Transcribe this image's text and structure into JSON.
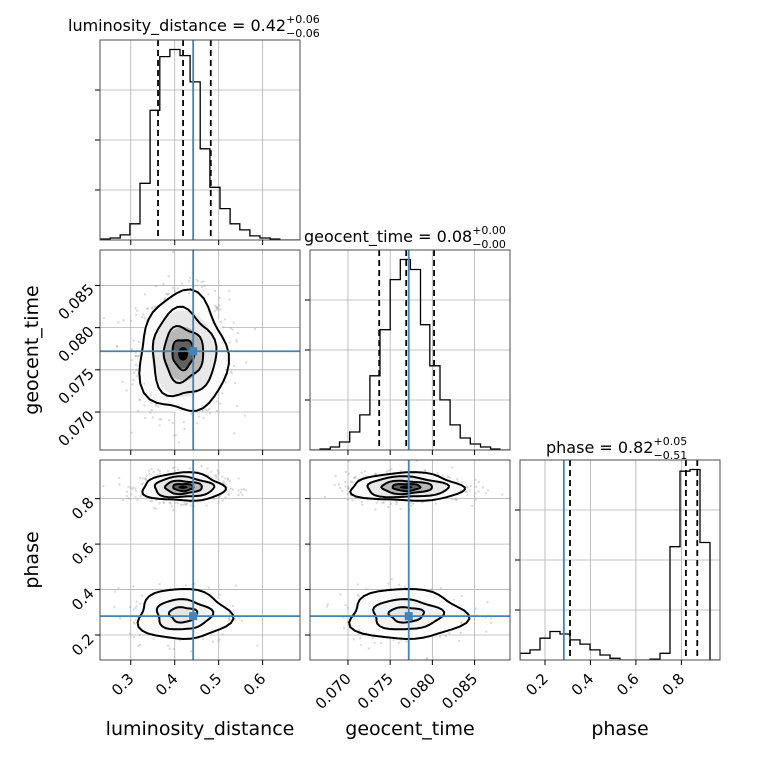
{
  "chart_data": {
    "type": "corner",
    "parameters": [
      "luminosity_distance",
      "geocent_time",
      "phase"
    ],
    "axis_labels": [
      "luminosity_distance",
      "geocent_time",
      "phase"
    ],
    "ranges": {
      "luminosity_distance": [
        0.23,
        0.685
      ],
      "geocent_time": [
        0.0655,
        0.0892
      ],
      "phase": [
        0.09,
        0.97
      ]
    },
    "ticks": {
      "luminosity_distance": [
        0.3,
        0.4,
        0.5,
        0.6
      ],
      "geocent_time": [
        0.07,
        0.075,
        0.08,
        0.085
      ],
      "phase_y": [
        0.2,
        0.4,
        0.6,
        0.8
      ],
      "phase_x": [
        0.2,
        0.4,
        0.6,
        0.8
      ]
    },
    "tick_labels": {
      "luminosity_distance": [
        "0.3",
        "0.4",
        "0.5",
        "0.6"
      ],
      "geocent_time": [
        "0.070",
        "0.075",
        "0.080",
        "0.085"
      ],
      "phase_y": [
        "0.2",
        "0.4",
        "0.6",
        "0.8"
      ],
      "phase_x": [
        "0.2",
        "0.4",
        "0.6",
        "0.8"
      ]
    },
    "truths": {
      "luminosity_distance": 0.442,
      "geocent_time": 0.0772,
      "phase": 0.283
    },
    "titles": [
      {
        "param": "luminosity_distance",
        "text": "luminosity_distance = 0.42",
        "plus": "+0.06",
        "minus": "−0.06"
      },
      {
        "param": "geocent_time",
        "text": "geocent_time = 0.08",
        "plus": "+0.00",
        "minus": "−0.00"
      },
      {
        "param": "phase",
        "text": "phase = 0.82",
        "plus": "+0.05",
        "minus": "−0.51"
      }
    ],
    "quantiles": {
      "luminosity_distance": [
        0.362,
        0.419,
        0.482
      ],
      "geocent_time": [
        0.0737,
        0.0769,
        0.0802
      ],
      "phase": [
        0.31,
        0.82,
        0.87
      ]
    },
    "histograms": {
      "luminosity_distance": {
        "edges": [
          0.23,
          0.253,
          0.276,
          0.298,
          0.321,
          0.344,
          0.366,
          0.389,
          0.412,
          0.435,
          0.458,
          0.48,
          0.503,
          0.526,
          0.548,
          0.571,
          0.594,
          0.617,
          0.639,
          0.662,
          0.685
        ],
        "counts": [
          1,
          2,
          5,
          16,
          56,
          128,
          181,
          188,
          182,
          156,
          90,
          52,
          31,
          16,
          10,
          4,
          2,
          1,
          0,
          0
        ]
      },
      "geocent_time": {
        "edges": [
          0.0655,
          0.0667,
          0.0679,
          0.069,
          0.0702,
          0.0714,
          0.0726,
          0.0738,
          0.075,
          0.0762,
          0.0774,
          0.0786,
          0.0797,
          0.0809,
          0.0821,
          0.0833,
          0.0845,
          0.0857,
          0.0869,
          0.088,
          0.0892
        ],
        "counts": [
          0,
          1,
          3,
          8,
          18,
          35,
          74,
          120,
          170,
          190,
          180,
          125,
          84,
          50,
          25,
          12,
          6,
          3,
          1,
          0
        ]
      },
      "phase": {
        "edges": [
          0.09,
          0.134,
          0.178,
          0.222,
          0.266,
          0.31,
          0.354,
          0.398,
          0.442,
          0.486,
          0.53,
          0.574,
          0.618,
          0.662,
          0.706,
          0.75,
          0.794,
          0.838,
          0.882,
          0.926,
          0.97
        ],
        "counts": [
          8,
          12,
          26,
          34,
          31,
          24,
          19,
          12,
          6,
          2,
          0,
          0,
          0,
          1,
          8,
          135,
          225,
          227,
          140,
          0
        ]
      }
    }
  }
}
